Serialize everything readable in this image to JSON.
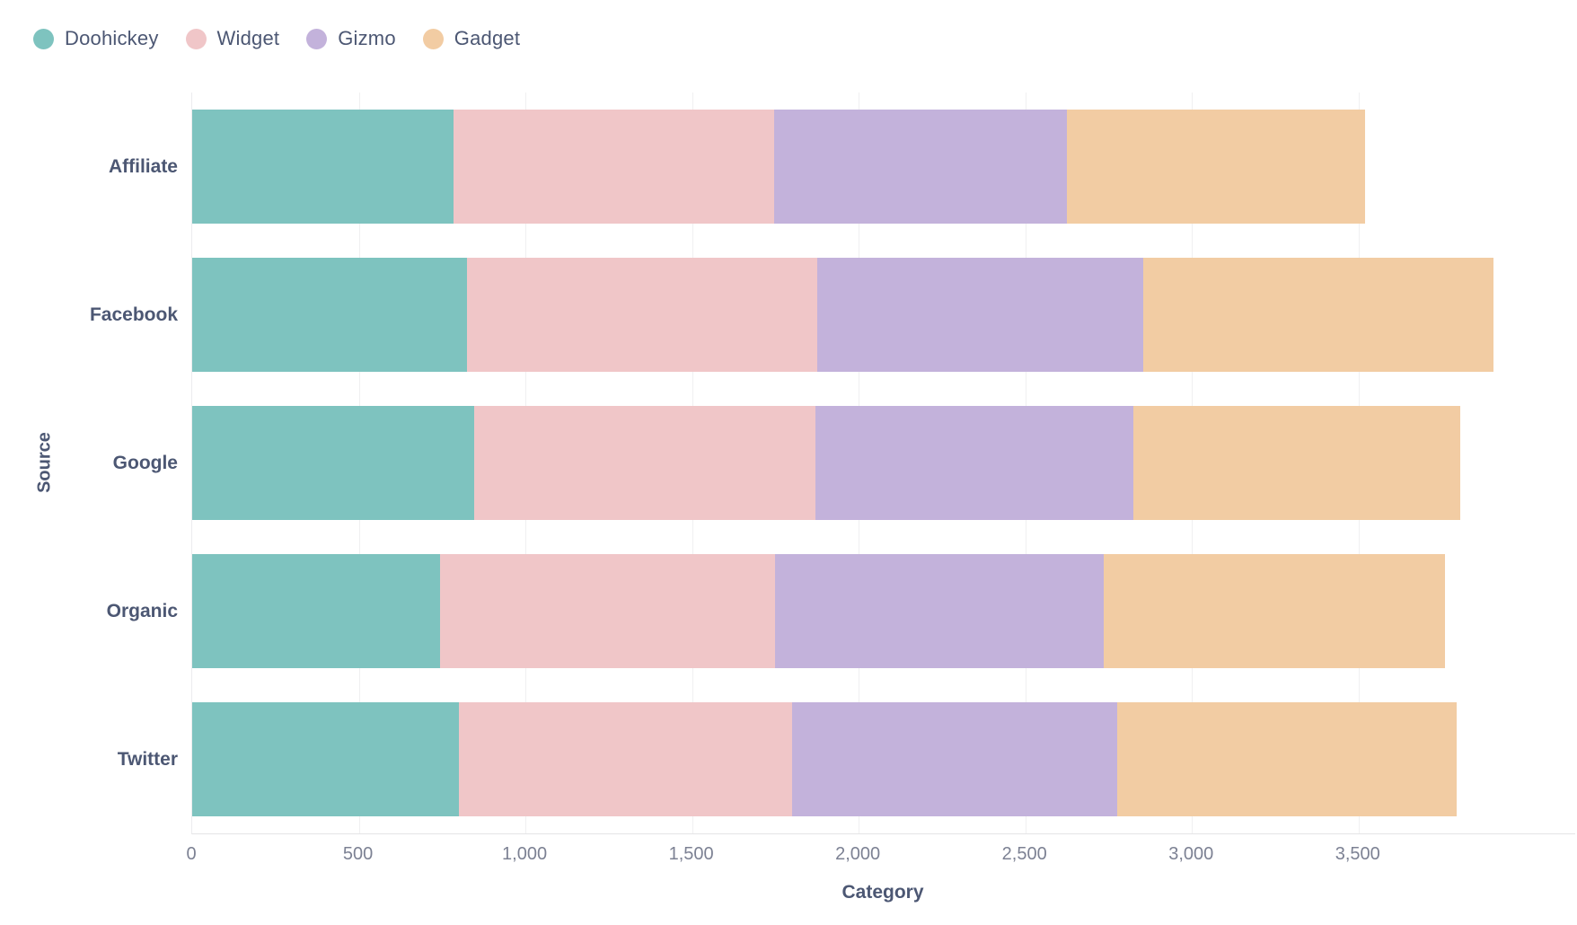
{
  "legend": {
    "items": [
      {
        "label": "Doohickey",
        "color": "#7EC3BF"
      },
      {
        "label": "Widget",
        "color": "#F0C6C8"
      },
      {
        "label": "Gizmo",
        "color": "#C3B2DB"
      },
      {
        "label": "Gadget",
        "color": "#F2CCA3"
      }
    ]
  },
  "axes": {
    "x": {
      "title": "Category",
      "tick_labels": [
        "0",
        "500",
        "1,000",
        "1,500",
        "2,000",
        "2,500",
        "3,000",
        "3,500"
      ],
      "tick_values": [
        0,
        500,
        1000,
        1500,
        2000,
        2500,
        3000,
        3500
      ]
    },
    "y": {
      "title": "Source"
    }
  },
  "chart_data": {
    "type": "bar",
    "orientation": "horizontal",
    "stacked": true,
    "title": "",
    "xlabel": "Category",
    "ylabel": "Source",
    "xlim": [
      0,
      4150
    ],
    "grid": true,
    "legend_position": "top-left",
    "categories": [
      "Affiliate",
      "Facebook",
      "Google",
      "Organic",
      "Twitter"
    ],
    "series": [
      {
        "name": "Doohickey",
        "color": "#7EC3BF",
        "values": [
          785,
          825,
          845,
          745,
          800
        ]
      },
      {
        "name": "Widget",
        "color": "#F0C6C8",
        "values": [
          960,
          1050,
          1025,
          1005,
          1000
        ]
      },
      {
        "name": "Gizmo",
        "color": "#C3B2DB",
        "values": [
          880,
          980,
          955,
          985,
          975
        ]
      },
      {
        "name": "Gadget",
        "color": "#F2CCA3",
        "values": [
          895,
          1050,
          980,
          1025,
          1020
        ]
      }
    ],
    "totals": [
      3520,
      3905,
      3805,
      3760,
      3795
    ]
  },
  "colors": {
    "text_dark": "#4C5773",
    "tick_text": "#7c8193",
    "gridline": "#f0f0f1",
    "axis_line": "#e4e4e6",
    "background": "#ffffff"
  }
}
